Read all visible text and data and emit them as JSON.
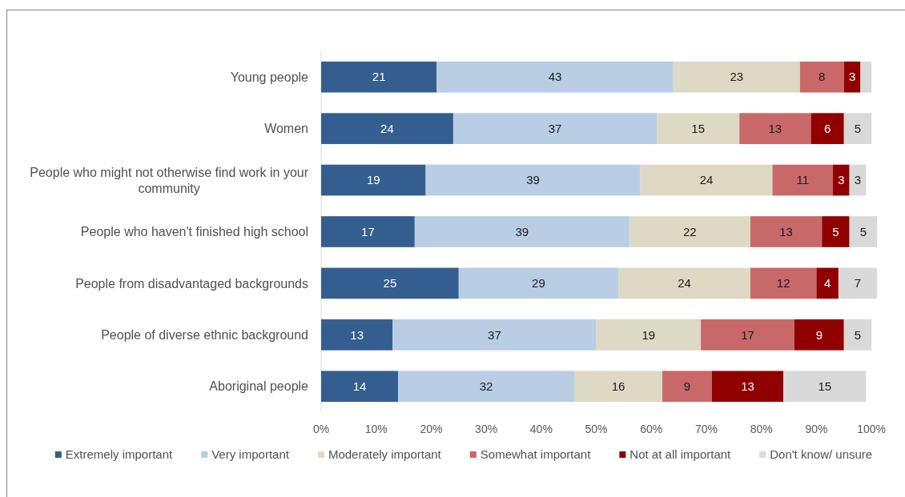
{
  "chart_data": {
    "type": "bar",
    "orientation": "horizontal",
    "stacked": true,
    "categories": [
      "Young people",
      "Women",
      "People who might not otherwise find work in your community",
      "People who haven't finished high school",
      "People from disadvantaged backgrounds",
      "People of diverse ethnic background",
      "Aboriginal people"
    ],
    "series": [
      {
        "name": "Extremely important",
        "color": "#345e8f",
        "values": [
          21,
          24,
          19,
          17,
          25,
          13,
          14
        ],
        "value_labels": [
          "21",
          "24",
          "19",
          "17",
          "25",
          "13",
          "14"
        ]
      },
      {
        "name": "Very important",
        "color": "#b9cde5",
        "values": [
          43,
          37,
          39,
          39,
          29,
          37,
          32
        ],
        "value_labels": [
          "43",
          "37",
          "39",
          "39",
          "29",
          "37",
          "32"
        ]
      },
      {
        "name": "Moderately important",
        "color": "#ddd9c4",
        "values": [
          23,
          15,
          24,
          22,
          24,
          19,
          16
        ],
        "value_labels": [
          "23",
          "15",
          "24",
          "22",
          "24",
          "19",
          "16"
        ]
      },
      {
        "name": "Somewhat important",
        "color": "#c96868",
        "values": [
          8,
          13,
          11,
          13,
          12,
          17,
          9
        ],
        "value_labels": [
          "8",
          "13",
          "11",
          "13",
          "12",
          "17",
          "9"
        ]
      },
      {
        "name": "Not at all important",
        "color": "#900000",
        "values": [
          3,
          6,
          3,
          5,
          4,
          9,
          13
        ],
        "value_labels": [
          "3",
          "6",
          "3",
          "5",
          "4",
          "9",
          "13"
        ]
      },
      {
        "name": "Don't know/ unsure",
        "color": "#d9d9d9",
        "values": [
          2,
          5,
          3,
          5,
          7,
          5,
          15
        ],
        "value_labels": [
          null,
          "5",
          "3",
          "5",
          "7",
          "5",
          "15"
        ]
      }
    ],
    "xlim": [
      0,
      101
    ],
    "xticks": [
      {
        "value": 0,
        "label": "0%"
      },
      {
        "value": 10,
        "label": "10%"
      },
      {
        "value": 20,
        "label": "20%"
      },
      {
        "value": 30,
        "label": "30%"
      },
      {
        "value": 40,
        "label": "40%"
      },
      {
        "value": 50,
        "label": "50%"
      },
      {
        "value": 60,
        "label": "60%"
      },
      {
        "value": 70,
        "label": "70%"
      },
      {
        "value": 80,
        "label": "80%"
      },
      {
        "value": 90,
        "label": "90%"
      },
      {
        "value": 100,
        "label": "100%"
      }
    ],
    "legend": "bottom"
  }
}
